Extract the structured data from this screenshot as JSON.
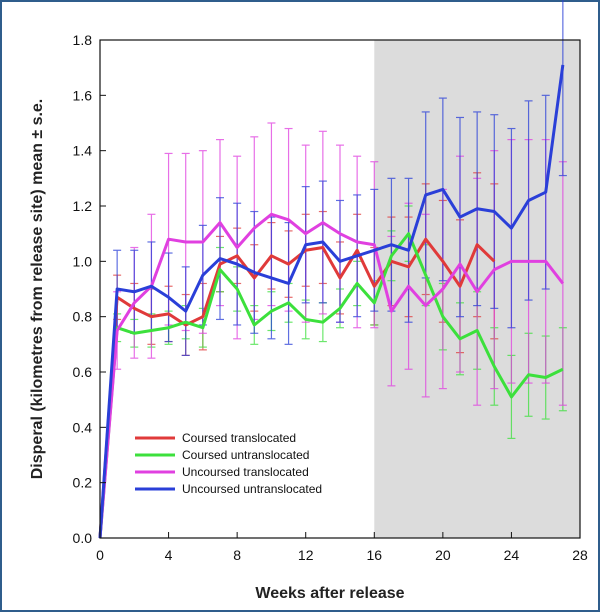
{
  "chart_data": {
    "type": "line",
    "xlabel": "Weeks after release",
    "ylabel": "Disperal (kilometres from release site) mean ± s.e.",
    "xlim": [
      0,
      28
    ],
    "ylim": [
      0,
      1.8
    ],
    "xticks": [
      0,
      4,
      8,
      12,
      16,
      20,
      24,
      28
    ],
    "yticks": [
      0.0,
      0.2,
      0.4,
      0.6,
      0.8,
      1.0,
      1.2,
      1.4,
      1.6,
      1.8
    ],
    "ytick_labels": [
      "0.0",
      "0.2",
      "0.4",
      "0.6",
      "0.8",
      "1.0",
      "1.2",
      "1.4",
      "1.6",
      "1.8"
    ],
    "shaded_region": {
      "x_start": 16,
      "x_end": 28,
      "color": "#dcdcdc"
    },
    "legend_position": "bottom-left",
    "grid": false,
    "series": [
      {
        "name": "Coursed translocated",
        "color": "#e03a3a",
        "x": [
          0,
          1,
          2,
          3,
          4,
          5,
          6,
          7,
          8,
          9,
          10,
          11,
          12,
          13,
          14,
          15,
          16,
          17,
          18,
          19,
          20,
          21,
          22,
          23
        ],
        "y": [
          0,
          0.87,
          0.83,
          0.8,
          0.81,
          0.77,
          0.8,
          0.99,
          1.02,
          0.94,
          1.02,
          0.99,
          1.04,
          1.05,
          0.94,
          1.04,
          0.91,
          1.0,
          0.98,
          1.08,
          1.0,
          0.91,
          1.06,
          1.0
        ],
        "err": [
          0,
          0.08,
          0.09,
          0.1,
          0.1,
          0.11,
          0.12,
          0.1,
          0.1,
          0.12,
          0.12,
          0.12,
          0.13,
          0.13,
          0.13,
          0.13,
          0.14,
          0.16,
          0.18,
          0.2,
          0.22,
          0.24,
          0.26,
          0.28
        ]
      },
      {
        "name": "Coursed untranslocated",
        "color": "#3ce03c",
        "x": [
          0,
          1,
          2,
          3,
          4,
          5,
          6,
          7,
          8,
          9,
          10,
          11,
          12,
          13,
          14,
          15,
          16,
          17,
          18,
          19,
          20,
          21,
          22,
          23,
          24,
          25,
          26,
          27
        ],
        "y": [
          0,
          0.76,
          0.74,
          0.75,
          0.76,
          0.78,
          0.76,
          0.97,
          0.9,
          0.77,
          0.82,
          0.85,
          0.79,
          0.78,
          0.83,
          0.92,
          0.85,
          1.02,
          1.1,
          0.95,
          0.8,
          0.72,
          0.75,
          0.62,
          0.51,
          0.59,
          0.58,
          0.61
        ],
        "err": [
          0,
          0.05,
          0.05,
          0.06,
          0.06,
          0.06,
          0.07,
          0.08,
          0.08,
          0.07,
          0.07,
          0.07,
          0.07,
          0.07,
          0.07,
          0.08,
          0.08,
          0.09,
          0.1,
          0.11,
          0.12,
          0.13,
          0.14,
          0.14,
          0.15,
          0.15,
          0.15,
          0.15
        ]
      },
      {
        "name": "Uncoursed translocated",
        "color": "#e040e0",
        "x": [
          0,
          1,
          2,
          3,
          4,
          5,
          6,
          7,
          8,
          9,
          10,
          11,
          12,
          13,
          14,
          15,
          16,
          17,
          18,
          19,
          20,
          21,
          22,
          23,
          24,
          25,
          26,
          27
        ],
        "y": [
          0,
          0.75,
          0.85,
          0.91,
          1.08,
          1.07,
          1.07,
          1.14,
          1.05,
          1.12,
          1.17,
          1.15,
          1.1,
          1.14,
          1.1,
          1.07,
          1.06,
          0.82,
          0.91,
          0.84,
          0.9,
          0.99,
          0.89,
          0.97,
          1.0,
          1.0,
          1.0,
          0.92
        ],
        "err": [
          0,
          0.14,
          0.2,
          0.26,
          0.31,
          0.32,
          0.33,
          0.3,
          0.33,
          0.33,
          0.33,
          0.33,
          0.32,
          0.33,
          0.32,
          0.31,
          0.3,
          0.27,
          0.3,
          0.33,
          0.36,
          0.39,
          0.41,
          0.43,
          0.44,
          0.44,
          0.44,
          0.44
        ]
      },
      {
        "name": "Uncoursed untranslocated",
        "color": "#2a3fd8",
        "x": [
          0,
          1,
          2,
          3,
          4,
          5,
          6,
          7,
          8,
          9,
          10,
          11,
          12,
          13,
          14,
          15,
          16,
          17,
          18,
          19,
          20,
          21,
          22,
          23,
          24,
          25,
          26,
          27
        ],
        "y": [
          0,
          0.9,
          0.89,
          0.91,
          0.87,
          0.82,
          0.95,
          1.01,
          0.99,
          0.96,
          0.94,
          0.92,
          1.06,
          1.07,
          1.0,
          1.02,
          1.04,
          1.06,
          1.04,
          1.24,
          1.26,
          1.16,
          1.19,
          1.18,
          1.12,
          1.22,
          1.25,
          1.71
        ],
        "err": [
          0,
          0.14,
          0.15,
          0.16,
          0.16,
          0.16,
          0.18,
          0.22,
          0.22,
          0.22,
          0.22,
          0.22,
          0.21,
          0.22,
          0.22,
          0.22,
          0.22,
          0.24,
          0.26,
          0.3,
          0.33,
          0.36,
          0.35,
          0.35,
          0.36,
          0.36,
          0.35,
          0.4
        ]
      }
    ]
  }
}
